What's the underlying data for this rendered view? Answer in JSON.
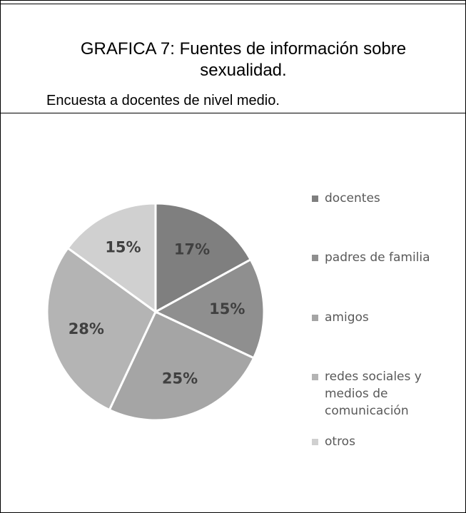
{
  "chart_data": {
    "type": "pie",
    "title": "GRAFICA 7: Fuentes de información sobre sexualidad.",
    "subtitle": "Encuesta a docentes de nivel medio.",
    "categories": [
      "docentes",
      "padres de familia",
      "amigos",
      "redes sociales y medios de comunicación",
      "otros"
    ],
    "values": [
      17,
      15,
      25,
      28,
      15
    ],
    "value_labels": [
      "17%",
      "15%",
      "25%",
      "28%",
      "15%"
    ],
    "colors": [
      "#7f7f7f",
      "#8f8f8f",
      "#a5a5a5",
      "#b4b4b4",
      "#d0d0d0"
    ],
    "legend": "right"
  }
}
